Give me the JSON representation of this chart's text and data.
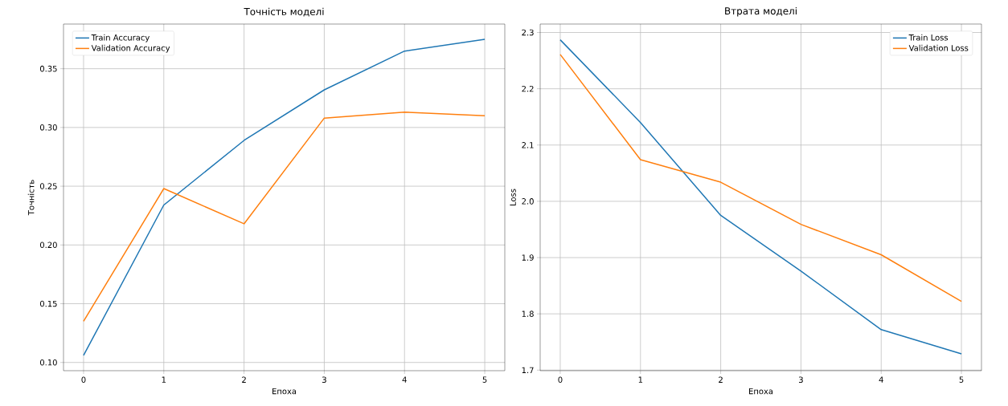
{
  "chart_data": [
    {
      "type": "line",
      "title": "Точність моделі",
      "xlabel": "Епоха",
      "ylabel": "Точність",
      "x": [
        0,
        1,
        2,
        3,
        4,
        5
      ],
      "series": [
        {
          "name": "Train Accuracy",
          "color": "#1f77b4",
          "values": [
            0.106,
            0.234,
            0.289,
            0.332,
            0.365,
            0.375
          ]
        },
        {
          "name": "Validation Accuracy",
          "color": "#ff7f0e",
          "values": [
            0.135,
            0.248,
            0.218,
            0.308,
            0.313,
            0.31
          ]
        }
      ],
      "xlim": [
        -0.25,
        5.25
      ],
      "ylim": [
        0.093,
        0.388
      ],
      "xticks": [
        0,
        1,
        2,
        3,
        4,
        5
      ],
      "yticks": [
        {
          "value": 0.1,
          "label": "0.10"
        },
        {
          "value": 0.15,
          "label": "0.15"
        },
        {
          "value": 0.2,
          "label": "0.20"
        },
        {
          "value": 0.25,
          "label": "0.25"
        },
        {
          "value": 0.3,
          "label": "0.30"
        },
        {
          "value": 0.35,
          "label": "0.35"
        }
      ],
      "grid": true,
      "legend": "top left",
      "marker": "none",
      "line_style": "solid"
    },
    {
      "type": "line",
      "title": "Втрата моделі",
      "xlabel": "Епоха",
      "ylabel": "Loss",
      "x": [
        0,
        1,
        2,
        3,
        4,
        5
      ],
      "series": [
        {
          "name": "Train Loss",
          "color": "#1f77b4",
          "values": [
            2.287,
            2.14,
            1.975,
            1.876,
            1.772,
            1.729
          ]
        },
        {
          "name": "Validation Loss",
          "color": "#ff7f0e",
          "values": [
            2.261,
            2.074,
            2.034,
            1.959,
            1.905,
            1.822
          ]
        }
      ],
      "xlim": [
        -0.25,
        5.25
      ],
      "ylim": [
        1.699,
        2.315
      ],
      "xticks": [
        0,
        1,
        2,
        3,
        4,
        5
      ],
      "yticks": [
        {
          "value": 1.7,
          "label": "1.7"
        },
        {
          "value": 1.8,
          "label": "1.8"
        },
        {
          "value": 1.9,
          "label": "1.9"
        },
        {
          "value": 2.0,
          "label": "2.0"
        },
        {
          "value": 2.1,
          "label": "2.1"
        },
        {
          "value": 2.2,
          "label": "2.2"
        },
        {
          "value": 2.3,
          "label": "2.3"
        }
      ],
      "grid": true,
      "legend": "top right",
      "marker": "none",
      "line_style": "solid"
    }
  ]
}
